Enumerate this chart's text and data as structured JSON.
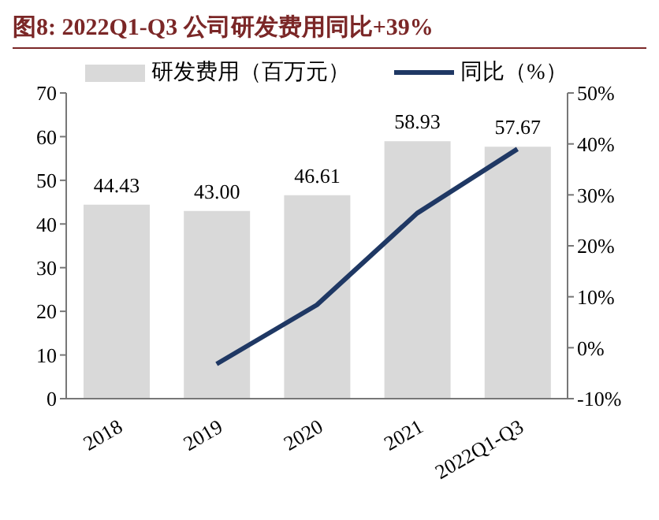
{
  "chart_data": {
    "type": "bar",
    "title": "图8:  2022Q1-Q3 公司研发费用同比+39%",
    "categories": [
      "2018",
      "2019",
      "2020",
      "2021",
      "2022Q1-Q3"
    ],
    "series": [
      {
        "name": "研发费用（百万元）",
        "color": "#d9d9d9",
        "values": [
          44.43,
          43.0,
          46.61,
          58.93,
          57.67
        ],
        "value_labels": [
          "44.43",
          "43.00",
          "46.61",
          "58.93",
          "57.67"
        ]
      },
      {
        "name": "同比（%）",
        "type": "line",
        "axis": "y2",
        "color": "#1f3864",
        "values": [
          null,
          -3.2,
          8.4,
          26.4,
          39
        ]
      }
    ],
    "ylim": [
      0,
      70
    ],
    "yticks": [
      0,
      10,
      20,
      30,
      40,
      50,
      60,
      70
    ],
    "y2lim": [
      -10,
      50
    ],
    "y2ticks": [
      {
        "value": -10,
        "label": "-10%"
      },
      {
        "value": 0,
        "label": "0%"
      },
      {
        "value": 10,
        "label": "10%"
      },
      {
        "value": 20,
        "label": "20%"
      },
      {
        "value": 30,
        "label": "30%"
      },
      {
        "value": 40,
        "label": "40%"
      },
      {
        "value": 50,
        "label": "50%"
      }
    ],
    "grid": false,
    "legend": "top",
    "marker": "none"
  }
}
